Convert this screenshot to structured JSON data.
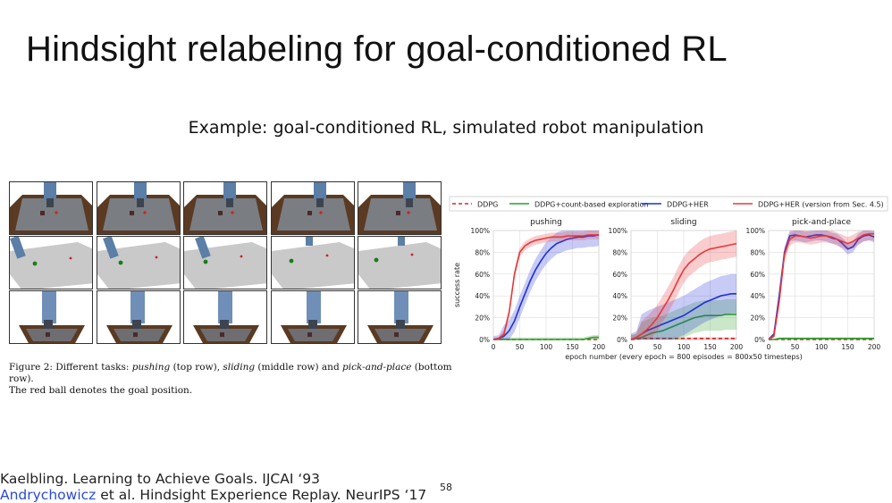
{
  "slide": {
    "title": "Hindsight relabeling for goal-conditioned RL",
    "subtitle": "Example: goal-conditioned RL, simulated robot manipulation",
    "page_number": "58"
  },
  "figure": {
    "rows": [
      "pushing",
      "sliding",
      "pick-and-place"
    ],
    "columns": 5,
    "caption": {
      "prefix": "Figure 2: Different tasks: ",
      "t1": "pushing",
      "mid1": " (top row), ",
      "t2": "sliding",
      "mid2": " (middle row) and ",
      "t3": "pick-and-place",
      "suffix": " (bottom row).",
      "line2": "The red ball denotes the goal position."
    }
  },
  "references": {
    "ref1": "Kaelbling. Learning to Achieve Goals. IJCAI ‘93",
    "ref2_link": "Andrychowicz",
    "ref2_rest": " et al. Hindsight Experience Replay. NeurIPS ‘17"
  },
  "chart_data": {
    "type": "line",
    "legend": [
      {
        "name": "DDPG",
        "color": "#d62728",
        "style": "dashed"
      },
      {
        "name": "DDPG+count-based exploration",
        "color": "#2ca02c",
        "style": "solid"
      },
      {
        "name": "DDPG+HER",
        "color": "#1f2fd6",
        "style": "solid"
      },
      {
        "name": "DDPG+HER (version from Sec. 4.5)",
        "color": "#e8383a",
        "style": "solid"
      }
    ],
    "xlabel": "epoch number (every epoch = 800 episodes = 800x50 timesteps)",
    "ylabel": "success rate",
    "xlim": [
      0,
      200
    ],
    "ylim": [
      0,
      100
    ],
    "xticks": [
      "0",
      "50",
      "100",
      "150",
      "200"
    ],
    "yticks": [
      "0%",
      "20%",
      "40%",
      "60%",
      "80%",
      "100%"
    ],
    "grid": true,
    "legend_position": "top",
    "panels": [
      {
        "title": "pushing",
        "x": [
          0,
          10,
          20,
          30,
          40,
          50,
          60,
          70,
          80,
          90,
          100,
          110,
          120,
          130,
          140,
          150,
          160,
          170,
          180,
          190,
          200
        ],
        "series": [
          {
            "name": "DDPG",
            "values": [
              0,
              0,
              0,
              0,
              0,
              0,
              0,
              0,
              0,
              0,
              0,
              0,
              0,
              0,
              0,
              0,
              0,
              0,
              0,
              0,
              0
            ]
          },
          {
            "name": "DDPG+count-based exploration",
            "values": [
              0,
              0,
              0,
              0,
              0,
              0,
              0,
              0,
              0,
              0,
              0,
              0,
              0,
              0,
              0,
              0,
              0,
              0,
              1,
              2,
              2
            ]
          },
          {
            "name": "DDPG+HER",
            "values": [
              0,
              1,
              3,
              8,
              17,
              30,
              42,
              54,
              64,
              72,
              79,
              84,
              88,
              90,
              92,
              93,
              94,
              94,
              95,
              95,
              96
            ]
          },
          {
            "name": "DDPG+HER (version from Sec. 4.5)",
            "values": [
              0,
              1,
              5,
              25,
              60,
              80,
              86,
              89,
              91,
              92,
              93,
              94,
              94,
              94,
              95,
              95,
              95,
              95,
              96,
              96,
              96
            ]
          }
        ]
      },
      {
        "title": "sliding",
        "x": [
          0,
          10,
          20,
          30,
          40,
          50,
          60,
          70,
          80,
          90,
          100,
          110,
          120,
          130,
          140,
          150,
          160,
          170,
          180,
          190,
          200
        ],
        "series": [
          {
            "name": "DDPG",
            "values": [
              0,
              0,
              1,
              1,
              1,
              1,
              1,
              1,
              1,
              1,
              1,
              1,
              1,
              1,
              1,
              1,
              1,
              1,
              1,
              1,
              1
            ]
          },
          {
            "name": "DDPG+count-based exploration",
            "values": [
              0,
              1,
              2,
              4,
              6,
              7,
              8,
              10,
              12,
              14,
              16,
              18,
              20,
              21,
              22,
              22,
              22,
              22,
              23,
              23,
              23
            ]
          },
          {
            "name": "DDPG+HER",
            "values": [
              0,
              2,
              5,
              8,
              10,
              12,
              14,
              16,
              18,
              20,
              22,
              25,
              28,
              31,
              34,
              36,
              38,
              40,
              41,
              42,
              42
            ]
          },
          {
            "name": "DDPG+HER (version from Sec. 4.5)",
            "values": [
              0,
              2,
              5,
              9,
              14,
              20,
              28,
              36,
              45,
              55,
              64,
              70,
              74,
              78,
              81,
              83,
              84,
              85,
              86,
              87,
              88
            ]
          }
        ]
      },
      {
        "title": "pick-and-place",
        "x": [
          0,
          10,
          20,
          30,
          40,
          50,
          60,
          70,
          80,
          90,
          100,
          110,
          120,
          130,
          140,
          150,
          160,
          170,
          180,
          190,
          200
        ],
        "series": [
          {
            "name": "DDPG",
            "values": [
              0,
              0,
              0,
              0,
              0,
              0,
              0,
              0,
              0,
              0,
              0,
              0,
              0,
              0,
              0,
              0,
              0,
              0,
              0,
              0,
              0
            ]
          },
          {
            "name": "DDPG+count-based exploration",
            "values": [
              0,
              0,
              1,
              1,
              1,
              1,
              1,
              1,
              1,
              1,
              1,
              1,
              1,
              1,
              1,
              1,
              1,
              1,
              1,
              1,
              1
            ]
          },
          {
            "name": "DDPG+HER",
            "values": [
              0,
              5,
              40,
              80,
              95,
              96,
              95,
              94,
              95,
              96,
              96,
              95,
              93,
              92,
              88,
              83,
              85,
              92,
              95,
              96,
              94
            ]
          },
          {
            "name": "DDPG+HER (version from Sec. 4.5)",
            "values": [
              0,
              3,
              35,
              78,
              92,
              95,
              95,
              94,
              93,
              94,
              95,
              95,
              94,
              92,
              90,
              88,
              90,
              93,
              96,
              97,
              97
            ]
          }
        ]
      }
    ]
  }
}
